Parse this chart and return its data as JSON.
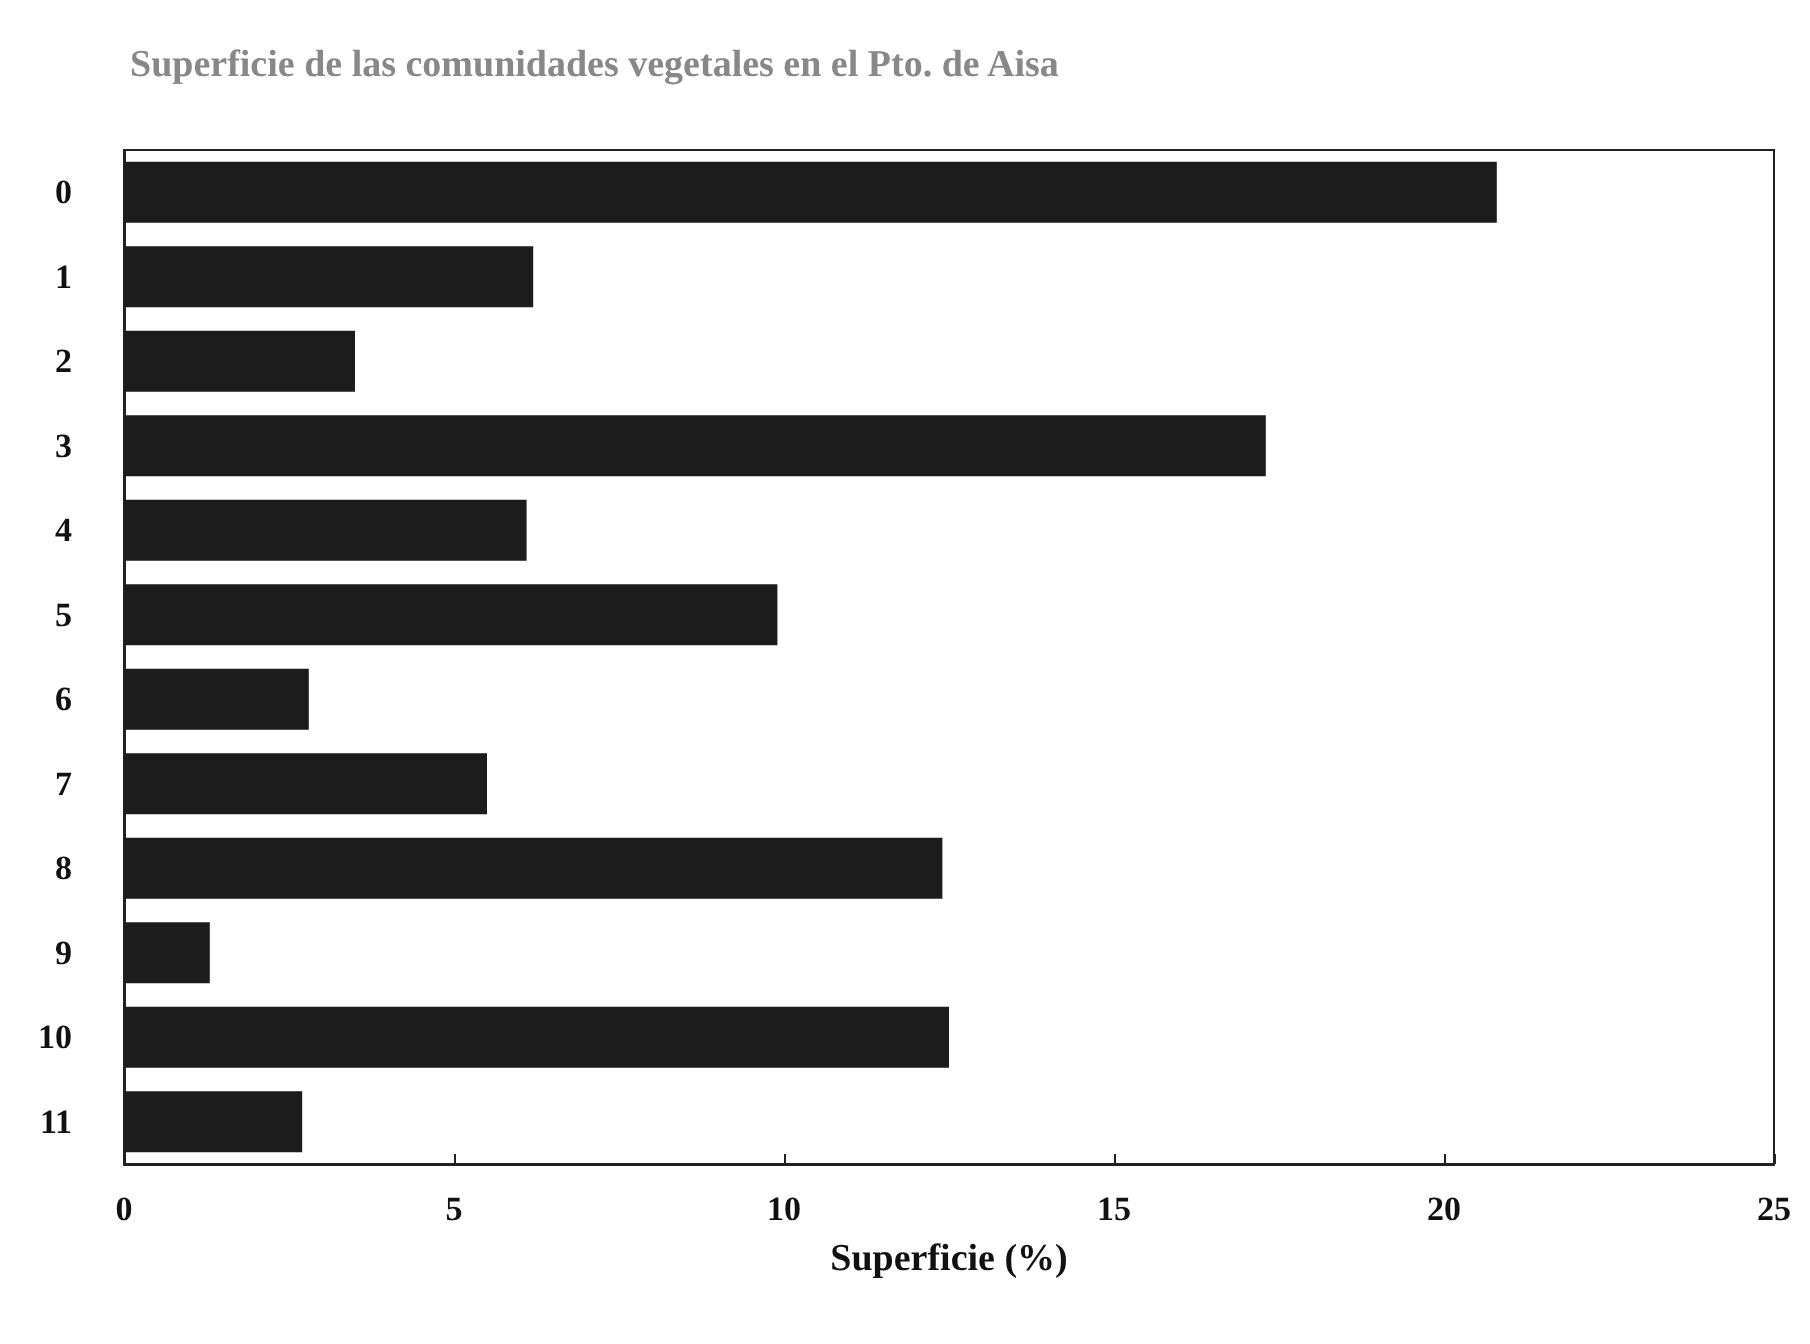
{
  "chart_data": {
    "type": "bar",
    "orientation": "horizontal",
    "title": "Superficie de las comunidades vegetales en el Pto. de Aisa",
    "xlabel": "Superficie (%)",
    "categories": [
      "0",
      "1",
      "2",
      "3",
      "4",
      "5",
      "6",
      "7",
      "8",
      "9",
      "10",
      "11"
    ],
    "values": [
      20.8,
      6.2,
      3.5,
      17.3,
      6.1,
      9.9,
      2.8,
      5.5,
      12.4,
      1.3,
      12.5,
      2.7
    ],
    "color": "#1c1c1c",
    "xlim": [
      0,
      25
    ],
    "xticks": [
      0,
      5,
      10,
      15,
      20,
      25
    ],
    "grid": false
  }
}
